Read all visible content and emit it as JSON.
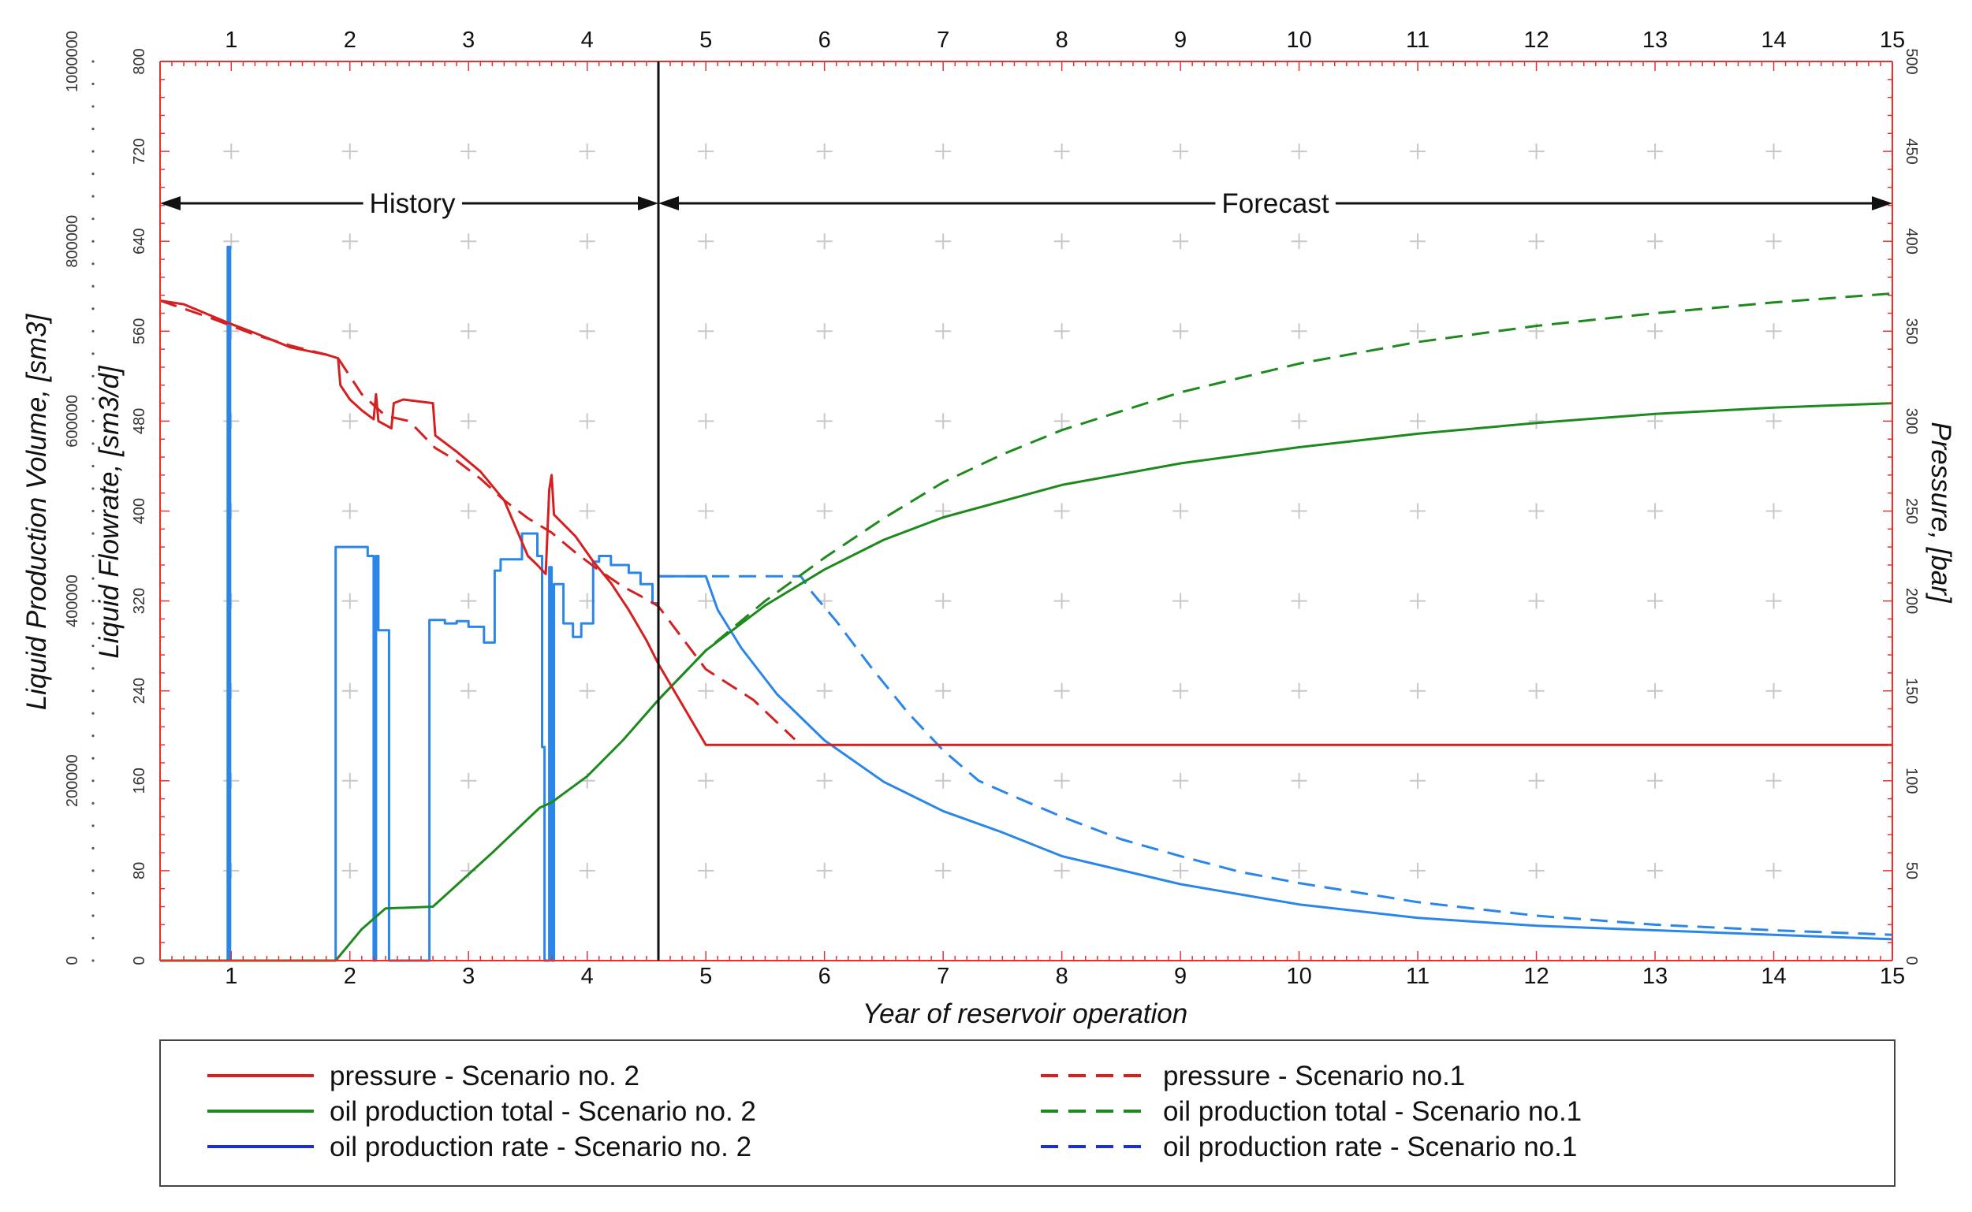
{
  "colors": {
    "pressure": "#d42020",
    "oil_total": "#1e8a1e",
    "oil_rate": "#2a86e8",
    "axis_red": "#e83030",
    "grid": "#c8c8c8",
    "black": "#111111",
    "legend_rate": "#1a2ee0"
  },
  "chart_data": {
    "type": "line",
    "xlabel": "Year of reservoir operation",
    "ylabel_left_outer": "Liquid Production Volume, [sm3]",
    "ylabel_left_inner": "Liquid Flowrate, [sm3/d]",
    "ylabel_right": "Pressure, [bar]",
    "xlim": [
      0.4,
      15
    ],
    "x_ticks": [
      "1",
      "2",
      "3",
      "4",
      "5",
      "6",
      "7",
      "8",
      "9",
      "10",
      "11",
      "12",
      "13",
      "14",
      "15"
    ],
    "ylim_volume": [
      0,
      1000000
    ],
    "ylim_flowrate": [
      0,
      800
    ],
    "ylim_pressure": [
      0,
      500
    ],
    "volume_ticks": [
      "0",
      "200000",
      "400000",
      "600000",
      "800000",
      "1000000"
    ],
    "flowrate_ticks": [
      "0",
      "80",
      "160",
      "240",
      "320",
      "400",
      "480",
      "560",
      "640",
      "720",
      "800"
    ],
    "pressure_ticks": [
      "0",
      "50",
      "100",
      "150",
      "200",
      "250",
      "300",
      "350",
      "400",
      "450",
      "500"
    ],
    "history_forecast_boundary": 4.6,
    "annotations": {
      "history": "History",
      "forecast": "Forecast"
    },
    "series": [
      {
        "name": "pressure - Scenario no. 2",
        "key": "pressure_s2",
        "axis": "pressure",
        "color_key": "pressure",
        "dashed": false,
        "points": [
          [
            0.4,
            367
          ],
          [
            0.6,
            365
          ],
          [
            1.0,
            354
          ],
          [
            1.2,
            349
          ],
          [
            1.5,
            341
          ],
          [
            1.8,
            337
          ],
          [
            1.9,
            335
          ],
          [
            1.92,
            320
          ],
          [
            2.0,
            312
          ],
          [
            2.1,
            306
          ],
          [
            2.2,
            301
          ],
          [
            2.22,
            315
          ],
          [
            2.24,
            300
          ],
          [
            2.35,
            296
          ],
          [
            2.37,
            310
          ],
          [
            2.45,
            312
          ],
          [
            2.7,
            310
          ],
          [
            2.72,
            292
          ],
          [
            2.9,
            283
          ],
          [
            3.1,
            272
          ],
          [
            3.3,
            256
          ],
          [
            3.5,
            225
          ],
          [
            3.58,
            220
          ],
          [
            3.65,
            215
          ],
          [
            3.68,
            262
          ],
          [
            3.7,
            270
          ],
          [
            3.72,
            248
          ],
          [
            3.9,
            236
          ],
          [
            4.05,
            222
          ],
          [
            4.2,
            210
          ],
          [
            4.35,
            195
          ],
          [
            4.5,
            178
          ],
          [
            4.6,
            165
          ],
          [
            5.0,
            120
          ],
          [
            15.0,
            120
          ]
        ]
      },
      {
        "name": "pressure - Scenario no.1",
        "key": "pressure_s1",
        "axis": "pressure",
        "color_key": "pressure",
        "dashed": true,
        "points": [
          [
            0.4,
            367
          ],
          [
            0.8,
            358
          ],
          [
            1.2,
            348
          ],
          [
            1.5,
            342
          ],
          [
            1.8,
            337
          ],
          [
            1.9,
            335
          ],
          [
            2.1,
            315
          ],
          [
            2.3,
            303
          ],
          [
            2.5,
            300
          ],
          [
            2.72,
            285
          ],
          [
            2.9,
            278
          ],
          [
            3.1,
            268
          ],
          [
            3.3,
            256
          ],
          [
            3.5,
            246
          ],
          [
            3.7,
            238
          ],
          [
            3.9,
            227
          ],
          [
            4.1,
            217
          ],
          [
            4.3,
            208
          ],
          [
            4.5,
            201
          ],
          [
            4.6,
            197
          ],
          [
            5.0,
            162
          ],
          [
            5.4,
            145
          ],
          [
            5.75,
            123
          ]
        ]
      },
      {
        "name": "oil production total - Scenario no. 2",
        "key": "total_s2",
        "axis": "volume",
        "color_key": "oil_total",
        "dashed": false,
        "points": [
          [
            0.4,
            0
          ],
          [
            1.88,
            0
          ],
          [
            2.1,
            35000
          ],
          [
            2.3,
            58000
          ],
          [
            2.7,
            60000
          ],
          [
            3.2,
            120000
          ],
          [
            3.6,
            170000
          ],
          [
            3.7,
            176000
          ],
          [
            4.0,
            205000
          ],
          [
            4.3,
            245000
          ],
          [
            4.6,
            290000
          ],
          [
            5.0,
            345000
          ],
          [
            5.5,
            395000
          ],
          [
            6.0,
            435000
          ],
          [
            6.5,
            468000
          ],
          [
            7.0,
            493000
          ],
          [
            8.0,
            529000
          ],
          [
            9.0,
            553000
          ],
          [
            10.0,
            571000
          ],
          [
            11.0,
            586000
          ],
          [
            12.0,
            598000
          ],
          [
            13.0,
            608000
          ],
          [
            14.0,
            615000
          ],
          [
            15.0,
            620000
          ]
        ]
      },
      {
        "name": "oil production total - Scenario no.1",
        "key": "total_s1",
        "axis": "volume",
        "color_key": "oil_total",
        "dashed": true,
        "points": [
          [
            4.6,
            290000
          ],
          [
            5.0,
            345000
          ],
          [
            5.5,
            400000
          ],
          [
            6.0,
            448000
          ],
          [
            6.5,
            492000
          ],
          [
            7.0,
            532000
          ],
          [
            7.5,
            563000
          ],
          [
            8.0,
            590000
          ],
          [
            9.0,
            632000
          ],
          [
            10.0,
            664000
          ],
          [
            11.0,
            688000
          ],
          [
            12.0,
            706000
          ],
          [
            13.0,
            720000
          ],
          [
            14.0,
            732000
          ],
          [
            15.0,
            742000
          ]
        ]
      },
      {
        "name": "oil production rate - Scenario no. 2",
        "key": "rate_s2",
        "axis": "flowrate",
        "color_key": "oil_rate",
        "dashed": false,
        "points": [
          [
            0.4,
            0
          ],
          [
            0.97,
            0
          ],
          [
            0.97,
            635
          ],
          [
            0.99,
            635
          ],
          [
            0.99,
            0
          ],
          [
            1.88,
            0
          ],
          [
            1.88,
            368
          ],
          [
            2.15,
            368
          ],
          [
            2.15,
            360
          ],
          [
            2.2,
            360
          ],
          [
            2.2,
            0
          ],
          [
            2.22,
            0
          ],
          [
            2.22,
            360
          ],
          [
            2.24,
            360
          ],
          [
            2.24,
            294
          ],
          [
            2.33,
            294
          ],
          [
            2.33,
            0
          ],
          [
            2.67,
            0
          ],
          [
            2.67,
            303
          ],
          [
            2.8,
            303
          ],
          [
            2.8,
            300
          ],
          [
            2.9,
            300
          ],
          [
            2.9,
            302
          ],
          [
            3.0,
            302
          ],
          [
            3.0,
            297
          ],
          [
            3.13,
            297
          ],
          [
            3.13,
            283
          ],
          [
            3.22,
            283
          ],
          [
            3.22,
            347
          ],
          [
            3.27,
            347
          ],
          [
            3.27,
            357
          ],
          [
            3.45,
            357
          ],
          [
            3.45,
            380
          ],
          [
            3.58,
            380
          ],
          [
            3.58,
            360
          ],
          [
            3.62,
            360
          ],
          [
            3.62,
            190
          ],
          [
            3.64,
            190
          ],
          [
            3.64,
            0
          ],
          [
            3.68,
            0
          ],
          [
            3.68,
            350
          ],
          [
            3.7,
            350
          ],
          [
            3.7,
            0
          ],
          [
            3.72,
            0
          ],
          [
            3.72,
            335
          ],
          [
            3.8,
            335
          ],
          [
            3.8,
            300
          ],
          [
            3.88,
            300
          ],
          [
            3.88,
            288
          ],
          [
            3.95,
            288
          ],
          [
            3.95,
            300
          ],
          [
            4.05,
            300
          ],
          [
            4.05,
            355
          ],
          [
            4.1,
            355
          ],
          [
            4.1,
            360
          ],
          [
            4.2,
            360
          ],
          [
            4.2,
            352
          ],
          [
            4.35,
            352
          ],
          [
            4.35,
            345
          ],
          [
            4.45,
            345
          ],
          [
            4.45,
            335
          ],
          [
            4.55,
            335
          ],
          [
            4.55,
            318
          ],
          [
            4.6,
            318
          ],
          [
            4.6,
            342
          ],
          [
            5.0,
            342
          ],
          [
            5.1,
            312
          ],
          [
            5.3,
            278
          ],
          [
            5.6,
            237
          ],
          [
            6.0,
            196
          ],
          [
            6.5,
            159
          ],
          [
            7.0,
            133
          ],
          [
            7.5,
            114
          ],
          [
            8.0,
            93
          ],
          [
            9.0,
            68
          ],
          [
            10.0,
            50
          ],
          [
            11.0,
            38
          ],
          [
            12.0,
            31
          ],
          [
            13.0,
            27
          ],
          [
            14.0,
            23
          ],
          [
            15.0,
            19
          ]
        ]
      },
      {
        "name": "oil production rate - Scenario no.1",
        "key": "rate_s1",
        "axis": "flowrate",
        "color_key": "oil_rate",
        "dashed": true,
        "points": [
          [
            4.6,
            342
          ],
          [
            5.8,
            342
          ],
          [
            5.9,
            327
          ],
          [
            6.1,
            302
          ],
          [
            6.4,
            260
          ],
          [
            6.7,
            221
          ],
          [
            7.0,
            187
          ],
          [
            7.3,
            160
          ],
          [
            7.6,
            146
          ],
          [
            8.0,
            128
          ],
          [
            8.5,
            108
          ],
          [
            9.0,
            93
          ],
          [
            9.5,
            79
          ],
          [
            10.0,
            69
          ],
          [
            11.0,
            52
          ],
          [
            12.0,
            40
          ],
          [
            13.0,
            32
          ],
          [
            14.0,
            27
          ],
          [
            15.0,
            23
          ]
        ]
      }
    ],
    "legend": [
      {
        "label": "pressure - Scenario no. 2",
        "color_key": "pressure",
        "dashed": false
      },
      {
        "label": "pressure - Scenario no.1",
        "color_key": "pressure",
        "dashed": true
      },
      {
        "label": "oil production total - Scenario no. 2",
        "color_key": "oil_total",
        "dashed": false
      },
      {
        "label": "oil production total - Scenario no.1",
        "color_key": "oil_total",
        "dashed": true
      },
      {
        "label": "oil production rate - Scenario no. 2",
        "color_key": "legend_rate",
        "dashed": false
      },
      {
        "label": "oil production rate - Scenario no.1",
        "color_key": "legend_rate",
        "dashed": true
      }
    ]
  }
}
